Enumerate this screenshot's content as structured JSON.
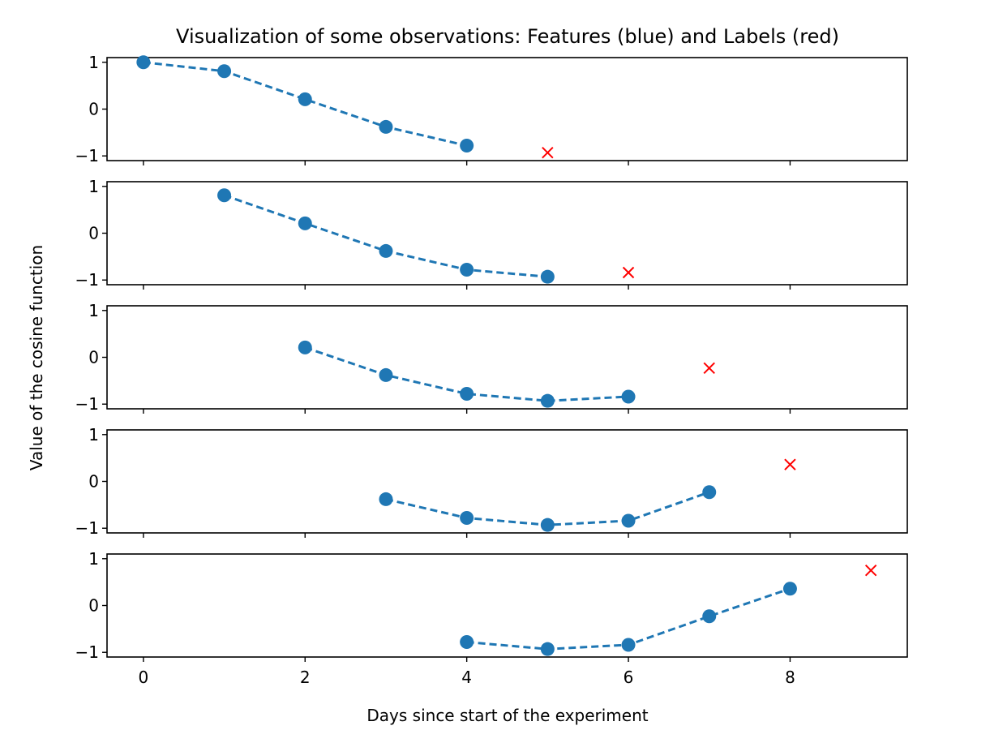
{
  "chart_data": {
    "type": "line",
    "title": "Visualization of some observations: Features (blue) and Labels (red)",
    "xlabel": "Days since start of the experiment",
    "ylabel": "Value of the cosine function",
    "xlim": [
      -0.45,
      9.45
    ],
    "ylim": [
      -1.1,
      1.1
    ],
    "xticks": [
      0,
      2,
      4,
      6,
      8
    ],
    "yticks": [
      -1,
      0,
      1
    ],
    "ytick_labels": [
      "−1",
      "0",
      "1"
    ],
    "grid": false,
    "colors": {
      "features": "#1f77b4",
      "labels": "#ff0000"
    },
    "panels": [
      {
        "features": {
          "x": [
            0,
            1,
            2,
            3,
            4
          ],
          "y": [
            1.0,
            0.81,
            0.21,
            -0.38,
            -0.78
          ]
        },
        "labels": {
          "x": [
            5
          ],
          "y": [
            -0.93
          ]
        }
      },
      {
        "features": {
          "x": [
            1,
            2,
            3,
            4,
            5
          ],
          "y": [
            0.81,
            0.21,
            -0.38,
            -0.78,
            -0.93
          ]
        },
        "labels": {
          "x": [
            6
          ],
          "y": [
            -0.84
          ]
        }
      },
      {
        "features": {
          "x": [
            2,
            3,
            4,
            5,
            6
          ],
          "y": [
            0.21,
            -0.38,
            -0.78,
            -0.93,
            -0.84
          ]
        },
        "labels": {
          "x": [
            7
          ],
          "y": [
            -0.23
          ]
        }
      },
      {
        "features": {
          "x": [
            3,
            4,
            5,
            6,
            7
          ],
          "y": [
            -0.38,
            -0.78,
            -0.93,
            -0.84,
            -0.23
          ]
        },
        "labels": {
          "x": [
            8
          ],
          "y": [
            0.36
          ]
        }
      },
      {
        "features": {
          "x": [
            4,
            5,
            6,
            7,
            8
          ],
          "y": [
            -0.78,
            -0.93,
            -0.84,
            -0.23,
            0.36
          ]
        },
        "labels": {
          "x": [
            9
          ],
          "y": [
            0.75
          ]
        }
      }
    ]
  }
}
